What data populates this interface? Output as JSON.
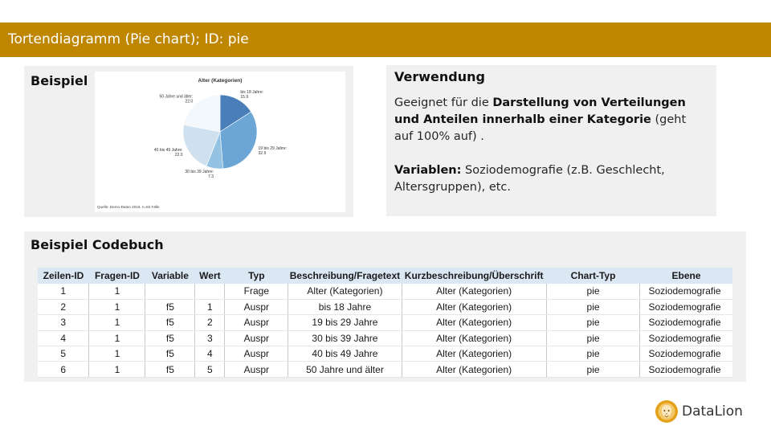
{
  "slide": {
    "title": "Tortendiagramm (Pie chart); ID: pie"
  },
  "example": {
    "heading": "Beispiel"
  },
  "chart_data": {
    "type": "pie",
    "title": "Alter (Kategorien)",
    "categories": [
      "bis 18 Jahre",
      "19 bis 29 Jahre",
      "30 bis 39 Jahre",
      "40 bis 49 Jahre",
      "50 Jahre und älter"
    ],
    "values": [
      15.9,
      32.9,
      7.3,
      22.0,
      22.0
    ],
    "slice_labels": [
      "bis 18 Jahre: 15.9",
      "19 bis 29 Jahre: 32.9",
      "30 bis 39 Jahre: 7.3",
      "40 bis 49 Jahre: 22.0",
      "50 Jahre und älter: 22.0"
    ],
    "colors": [
      "#4a7eb9",
      "#6ca6d6",
      "#93c2e3",
      "#cfe1ee",
      "#f3f8fc"
    ],
    "source": "Quelle: Demo-Daten 2018, n=82 Fälle"
  },
  "usage": {
    "heading": "Verwendung",
    "p1_pre": "Geeignet für die ",
    "p1_bold": "Darstellung von Verteilungen und Anteilen innerhalb einer Kategorie",
    "p1_post": " (geht auf 100% auf) .",
    "p2_bold": "Variablen:",
    "p2_post": " Soziodemografie (z.B. Geschlecht, Altersgruppen),  etc."
  },
  "codebook": {
    "heading": "Beispiel Codebuch",
    "columns": [
      "Zeilen-ID",
      "Fragen-ID",
      "Variable",
      "Wert",
      "Typ",
      "Beschreibung/Fragetext",
      "Kurzbeschreibung/Überschrift",
      "Chart-Typ",
      "Ebene"
    ],
    "rows": [
      [
        "1",
        "1",
        "",
        "",
        "Frage",
        "Alter (Kategorien)",
        "Alter (Kategorien)",
        "pie",
        "Soziodemografie"
      ],
      [
        "2",
        "1",
        "f5",
        "1",
        "Auspr",
        "bis 18 Jahre",
        "Alter (Kategorien)",
        "pie",
        "Soziodemografie"
      ],
      [
        "3",
        "1",
        "f5",
        "2",
        "Auspr",
        "19 bis 29 Jahre",
        "Alter (Kategorien)",
        "pie",
        "Soziodemografie"
      ],
      [
        "4",
        "1",
        "f5",
        "3",
        "Auspr",
        "30 bis 39 Jahre",
        "Alter (Kategorien)",
        "pie",
        "Soziodemografie"
      ],
      [
        "5",
        "1",
        "f5",
        "4",
        "Auspr",
        "40 bis 49 Jahre",
        "Alter (Kategorien)",
        "pie",
        "Soziodemografie"
      ],
      [
        "6",
        "1",
        "f5",
        "5",
        "Auspr",
        "50 Jahre und älter",
        "Alter (Kategorien)",
        "pie",
        "Soziodemografie"
      ]
    ]
  },
  "brand": {
    "name": "DataLion",
    "logo_icon": "lion-icon",
    "accent": "#bf8600"
  }
}
